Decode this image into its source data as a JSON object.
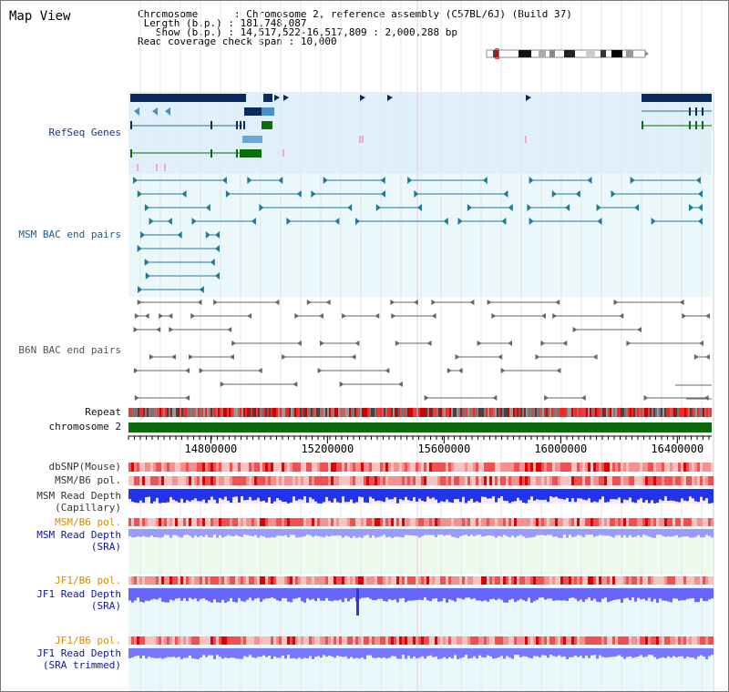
{
  "title": "Map View",
  "info": {
    "chromosome_key": "Chromosome",
    "chromosome_value": "Chromosome 2, reference assembly (C57BL/6J) (Build 37)",
    "length_key": "Length (b.p.)",
    "length_value": "181,748,087",
    "show_key": "Show (b.p.)",
    "show_value": "14,517,522-16,517,809 : 2,000,288 bp",
    "span_key": "Read coverage check span",
    "span_value": "10,000"
  },
  "tracks": {
    "refseq": "RefSeq Genes",
    "msm_bac": "MSM BAC end pairs",
    "b6n_bac": "B6N BAC end pairs",
    "repeat": "Repeat",
    "chromosome": "chromosome 2",
    "dbsnp": "dbSNP(Mouse)",
    "msm_b6_pol_1": "MSM/B6 pol.",
    "msm_depth_cap": "MSM Read Depth\n(Capillary)",
    "msm_b6_pol_2": "MSM/B6 pol.",
    "msm_depth_sra": "MSM Read Depth\n(SRA)",
    "jf1_b6_pol_1": "JF1/B6 pol.",
    "jf1_depth_sra": "JF1 Read Depth\n(SRA)",
    "jf1_b6_pol_2": "JF1/B6 pol.",
    "jf1_depth_trim": "JF1 Read Depth\n(SRA trimmed)"
  },
  "axis": {
    "ticks": [
      {
        "value": 14800000,
        "label": "14800000"
      },
      {
        "value": 15200000,
        "label": "15200000"
      },
      {
        "value": 15600000,
        "label": "15600000"
      },
      {
        "value": 16000000,
        "label": "16000000"
      },
      {
        "value": 16400000,
        "label": "16400000"
      }
    ],
    "range": [
      14517522,
      16517809
    ]
  },
  "colors": {
    "refseq_bg": "#dff0fb",
    "bac_bg": "#eaf7fb",
    "gene_dark": "#0b2a5e",
    "gene_blue": "#4a8ec8",
    "gene_green": "#0a6e0a",
    "msm_teal": "#1f7a99",
    "b6n_gray": "#666666",
    "chrom_green": "#0b6b0b",
    "depth_blue": "#2233ee",
    "depth_light": "#8888ff"
  }
}
